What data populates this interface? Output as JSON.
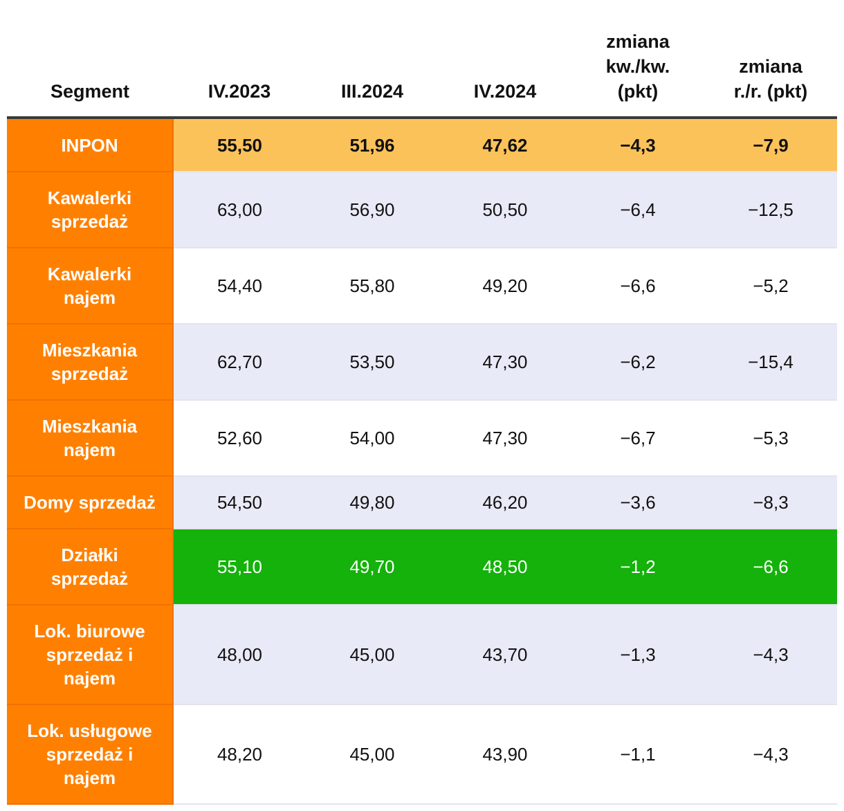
{
  "chart_data": {
    "type": "table",
    "columns": [
      "Segment",
      "IV.2023",
      "III.2024",
      "IV.2024",
      "zmiana kw./kw. (pkt)",
      "zmiana r./r. (pkt)"
    ],
    "header_lines": [
      [
        "Segment"
      ],
      [
        "IV.2023"
      ],
      [
        "III.2024"
      ],
      [
        "IV.2024"
      ],
      [
        "zmiana",
        "kw./kw.",
        "(pkt)"
      ],
      [
        "zmiana",
        "r./r. (pkt)"
      ]
    ],
    "rows": [
      {
        "segment": [
          "INPON"
        ],
        "values": [
          "55,50",
          "51,96",
          "47,62",
          "−4,3",
          "−7,9"
        ],
        "style": "inpon"
      },
      {
        "segment": [
          "Kawalerki",
          "sprzedaż"
        ],
        "values": [
          "63,00",
          "56,90",
          "50,50",
          "−6,4",
          "−12,5"
        ],
        "style": "alt"
      },
      {
        "segment": [
          "Kawalerki",
          "najem"
        ],
        "values": [
          "54,40",
          "55,80",
          "49,20",
          "−6,6",
          "−5,2"
        ],
        "style": "white"
      },
      {
        "segment": [
          "Mieszkania",
          "sprzedaż"
        ],
        "values": [
          "62,70",
          "53,50",
          "47,30",
          "−6,2",
          "−15,4"
        ],
        "style": "alt"
      },
      {
        "segment": [
          "Mieszkania",
          "najem"
        ],
        "values": [
          "52,60",
          "54,00",
          "47,30",
          "−6,7",
          "−5,3"
        ],
        "style": "white"
      },
      {
        "segment": [
          "Domy sprzedaż"
        ],
        "values": [
          "54,50",
          "49,80",
          "46,20",
          "−3,6",
          "−8,3"
        ],
        "style": "alt"
      },
      {
        "segment": [
          "Działki",
          "sprzedaż"
        ],
        "values": [
          "55,10",
          "49,70",
          "48,50",
          "−1,2",
          "−6,6"
        ],
        "style": "green"
      },
      {
        "segment": [
          "Lok. biurowe",
          "sprzedaż i",
          "najem"
        ],
        "values": [
          "48,00",
          "45,00",
          "43,70",
          "−1,3",
          "−4,3"
        ],
        "style": "alt"
      },
      {
        "segment": [
          "Lok. usługowe",
          "sprzedaż i",
          "najem"
        ],
        "values": [
          "48,20",
          "45,00",
          "43,90",
          "−1,1",
          "−4,3"
        ],
        "style": "white"
      }
    ]
  },
  "colors": {
    "segment_bg": "#ff8000",
    "inpon_row": "#fcc25a",
    "alt_row": "#e9eaf7",
    "highlight_row": "#14b20a",
    "header_rule": "#3a3a3a"
  }
}
